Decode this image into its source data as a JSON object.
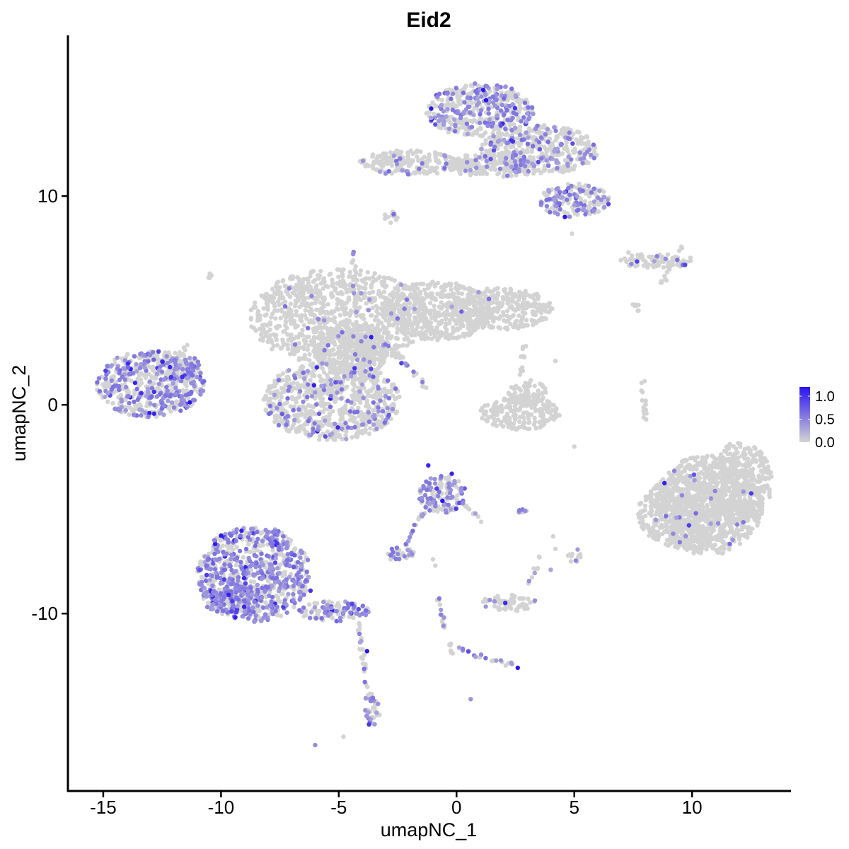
{
  "chart_data": {
    "type": "scatter",
    "title": "Eid2",
    "xlabel": "umapNC_1",
    "ylabel": "umapNC_2",
    "xlim": [
      -16.5,
      14.2
    ],
    "ylim": [
      -18.5,
      17.7
    ],
    "xticks": [
      -15,
      -10,
      -5,
      0,
      5,
      10
    ],
    "xtick_labels": [
      "-15",
      "-10",
      "-5",
      "0",
      "5",
      "10"
    ],
    "yticks": [
      10,
      0,
      -10
    ],
    "ytick_labels": [
      "10",
      "0",
      "-10"
    ],
    "grid": false,
    "legend": {
      "placement": "right",
      "type": "colorbar",
      "min": 0.0,
      "max": 1.2,
      "ticks": [
        1.0,
        0.5,
        0.0
      ],
      "tick_labels": [
        "1.0",
        "0.5",
        "0.0"
      ]
    },
    "colors": {
      "low": "#d3d3d3",
      "high": "#2b14f0"
    },
    "clusters": [
      {
        "cx": -5.0,
        "cy": 4.2,
        "rx": 3.8,
        "ry": 2.3,
        "expr_fraction": 0.02
      },
      {
        "cx": -0.8,
        "cy": 4.5,
        "rx": 2.4,
        "ry": 1.4,
        "expr_fraction": 0.01
      },
      {
        "cx": 1.8,
        "cy": 4.6,
        "rx": 2.3,
        "ry": 1.0,
        "expr_fraction": 0.0
      },
      {
        "cx": -5.3,
        "cy": 0.2,
        "rx": 2.9,
        "ry": 1.9,
        "expr_fraction": 0.15
      },
      {
        "cx": -4.5,
        "cy": 2.6,
        "rx": 1.6,
        "ry": 1.3,
        "expr_fraction": 0.03
      },
      {
        "cx": -13.0,
        "cy": 1.0,
        "rx": 2.3,
        "ry": 1.6,
        "expr_fraction": 0.4
      },
      {
        "cx": -11.8,
        "cy": 1.8,
        "rx": 0.9,
        "ry": 0.7,
        "expr_fraction": 0.25
      },
      {
        "cx": 1.0,
        "cy": 14.1,
        "rx": 2.3,
        "ry": 1.3,
        "expr_fraction": 0.35
      },
      {
        "cx": 3.5,
        "cy": 12.2,
        "rx": 2.5,
        "ry": 1.2,
        "expr_fraction": 0.2
      },
      {
        "cx": 5.0,
        "cy": 9.8,
        "rx": 1.5,
        "ry": 0.8,
        "expr_fraction": 0.35
      },
      {
        "cx": -2.0,
        "cy": 11.6,
        "rx": 2.2,
        "ry": 0.6,
        "expr_fraction": 0.06
      },
      {
        "cx": 1.5,
        "cy": 11.5,
        "rx": 2.0,
        "ry": 0.6,
        "expr_fraction": 0.1
      },
      {
        "cx": 8.5,
        "cy": 6.9,
        "rx": 1.6,
        "ry": 0.35,
        "expr_fraction": 0.08
      },
      {
        "cx": 2.7,
        "cy": -0.4,
        "rx": 1.7,
        "ry": 0.8,
        "expr_fraction": 0.0
      },
      {
        "cx": 3.0,
        "cy": 0.6,
        "rx": 0.8,
        "ry": 0.6,
        "expr_fraction": 0.0
      },
      {
        "cx": 10.7,
        "cy": -4.8,
        "rx": 2.3,
        "ry": 2.4,
        "expr_fraction": 0.02
      },
      {
        "cx": 12.0,
        "cy": -3.7,
        "rx": 1.4,
        "ry": 1.9,
        "expr_fraction": 0.01
      },
      {
        "cx": 9.7,
        "cy": -5.2,
        "rx": 2.0,
        "ry": 1.7,
        "expr_fraction": 0.02
      },
      {
        "cx": -8.6,
        "cy": -8.1,
        "rx": 2.4,
        "ry": 2.3,
        "expr_fraction": 0.55
      },
      {
        "cx": -9.5,
        "cy": -9.3,
        "rx": 1.3,
        "ry": 0.8,
        "expr_fraction": 0.55
      },
      {
        "cx": -5.2,
        "cy": -9.9,
        "rx": 1.5,
        "ry": 0.5,
        "expr_fraction": 0.45
      },
      {
        "cx": -0.6,
        "cy": -4.3,
        "rx": 1.0,
        "ry": 0.9,
        "expr_fraction": 0.4
      },
      {
        "cx": -2.4,
        "cy": -7.1,
        "rx": 0.6,
        "ry": 0.3,
        "expr_fraction": 0.4
      },
      {
        "cx": 2.2,
        "cy": -9.5,
        "rx": 1.2,
        "ry": 0.4,
        "expr_fraction": 0.15
      },
      {
        "cx": -3.6,
        "cy": -14.6,
        "rx": 0.35,
        "ry": 0.8,
        "expr_fraction": 0.4
      },
      {
        "cx": 5.0,
        "cy": -7.2,
        "rx": 0.3,
        "ry": 0.35,
        "expr_fraction": 0.3
      },
      {
        "cx": 2.8,
        "cy": -5.1,
        "rx": 0.3,
        "ry": 0.12,
        "expr_fraction": 0.3
      },
      {
        "cx": -2.8,
        "cy": 9.0,
        "rx": 0.3,
        "ry": 0.3,
        "expr_fraction": 0.05
      },
      {
        "cx": -10.5,
        "cy": 6.2,
        "rx": 0.12,
        "ry": 0.12,
        "expr_fraction": 0.0
      }
    ],
    "trajectories": [
      {
        "x1": -7.3,
        "y1": 5.4,
        "x2": -4.7,
        "y2": 3.0,
        "expr_fraction": 0.05
      },
      {
        "x1": -4.4,
        "y1": 7.5,
        "x2": -4.2,
        "y2": 3.6,
        "expr_fraction": 0.1
      },
      {
        "x1": -2.6,
        "y1": 2.6,
        "x2": -1.2,
        "y2": 0.7,
        "expr_fraction": 0.15
      },
      {
        "x1": -3.2,
        "y1": 3.2,
        "x2": -2.1,
        "y2": 1.8,
        "expr_fraction": 0.05
      },
      {
        "x1": -11.5,
        "y1": 2.8,
        "x2": -12.3,
        "y2": 1.5,
        "expr_fraction": 0.1
      },
      {
        "x1": 7.9,
        "y1": 1.1,
        "x2": 8.0,
        "y2": -0.9,
        "expr_fraction": 0.0
      },
      {
        "x1": 9.6,
        "y1": 7.5,
        "x2": 8.7,
        "y2": 5.7,
        "expr_fraction": 0.0
      },
      {
        "x1": 7.5,
        "y1": 4.9,
        "x2": 7.8,
        "y2": 4.5,
        "expr_fraction": 0.0
      },
      {
        "x1": 2.9,
        "y1": 3.0,
        "x2": 2.7,
        "y2": 1.3,
        "expr_fraction": 0.0
      },
      {
        "x1": -1.1,
        "y1": -4.5,
        "x2": -2.3,
        "y2": -7.0,
        "expr_fraction": 0.3
      },
      {
        "x1": 0.2,
        "y1": -4.6,
        "x2": 1.2,
        "y2": -5.8,
        "expr_fraction": 0.3
      },
      {
        "x1": -0.8,
        "y1": -9.3,
        "x2": -0.2,
        "y2": -11.9,
        "expr_fraction": 0.4
      },
      {
        "x1": 0.0,
        "y1": -11.7,
        "x2": 2.4,
        "y2": -12.5,
        "expr_fraction": 0.35
      },
      {
        "x1": -4.2,
        "y1": -10.5,
        "x2": -3.7,
        "y2": -14.2,
        "expr_fraction": 0.25
      },
      {
        "x1": 3.1,
        "y1": -8.5,
        "x2": 3.6,
        "y2": -7.3,
        "expr_fraction": 0.1
      },
      {
        "x1": -1.0,
        "y1": 12.0,
        "x2": 1.5,
        "y2": 11.3,
        "expr_fraction": 0.1
      }
    ],
    "isolated_points": [
      {
        "x": -6.0,
        "y": -16.3,
        "value": 0.45
      },
      {
        "x": 0.6,
        "y": -14.1,
        "value": 0.4
      },
      {
        "x": -4.8,
        "y": -15.9,
        "value": 0.0
      },
      {
        "x": -2.8,
        "y": -7.4,
        "value": 0.0
      },
      {
        "x": -1.0,
        "y": -7.4,
        "value": 0.0
      },
      {
        "x": -0.9,
        "y": -7.7,
        "value": 0.0
      },
      {
        "x": 4.1,
        "y": -6.3,
        "value": 0.0
      },
      {
        "x": 4.2,
        "y": -6.9,
        "value": 0.0
      },
      {
        "x": 4.0,
        "y": -7.9,
        "value": 0.3
      },
      {
        "x": 4.2,
        "y": 2.1,
        "value": 0.0
      },
      {
        "x": 4.9,
        "y": 8.2,
        "value": 0.0
      },
      {
        "x": 7.3,
        "y": 7.3,
        "value": 0.0
      },
      {
        "x": 7.6,
        "y": 4.8,
        "value": 0.0
      },
      {
        "x": 5.0,
        "y": -2.0,
        "value": 0.0
      },
      {
        "x": -0.2,
        "y": 4.7,
        "value": 0.3
      },
      {
        "x": -0.6,
        "y": -4.6,
        "value": 1.2
      },
      {
        "x": -1.2,
        "y": -2.9,
        "value": 1.1
      },
      {
        "x": -3.8,
        "y": -11.8,
        "value": 1.2
      },
      {
        "x": 2.6,
        "y": -12.6,
        "value": 1.2
      },
      {
        "x": 4.6,
        "y": 9.0,
        "value": 1.2
      },
      {
        "x": -6.2,
        "y": -8.9,
        "value": 1.0
      },
      {
        "x": -0.2,
        "y": -3.3,
        "value": 1.1
      },
      {
        "x": 9.7,
        "y": 6.7,
        "value": 0.9
      }
    ]
  }
}
